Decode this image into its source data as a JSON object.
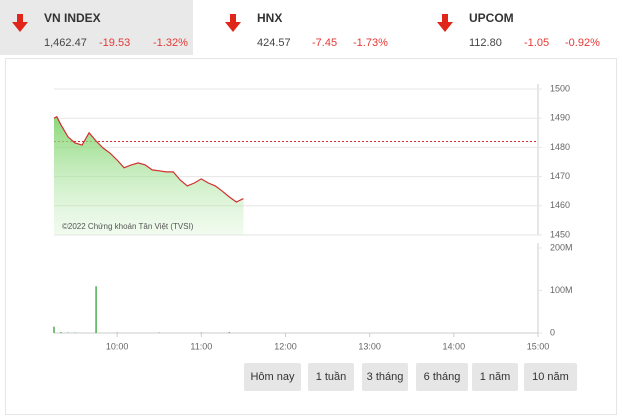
{
  "indices": [
    {
      "name": "VN INDEX",
      "value": "1,462.47",
      "change": "-19.53",
      "percent": "-1.32%"
    },
    {
      "name": "HNX",
      "value": "424.57",
      "change": "-7.45",
      "percent": "-1.73%"
    },
    {
      "name": "UPCOM",
      "value": "112.80",
      "change": "-1.05",
      "percent": "-0.92%"
    }
  ],
  "buttons": [
    "Hôm nay",
    "1 tuần",
    "3 tháng",
    "6 tháng",
    "1 năm",
    "10 năm"
  ],
  "chart_data": [
    {
      "type": "line",
      "annotation": "©2022 Chứng khoán Tân Việt (TVSI)",
      "x": [
        "09:15",
        "09:17",
        "09:20",
        "09:25",
        "09:30",
        "09:35",
        "09:40",
        "09:45",
        "09:50",
        "09:55",
        "10:00",
        "10:05",
        "10:10",
        "10:15",
        "10:20",
        "10:25",
        "10:30",
        "10:35",
        "10:40",
        "10:45",
        "10:50",
        "10:55",
        "11:00",
        "11:05",
        "11:10",
        "11:15",
        "11:20",
        "11:25",
        "11:30"
      ],
      "series": [
        {
          "color": "#d32f2f",
          "values": [
            1490,
            1490.5,
            1487.7,
            1483.6,
            1481.5,
            1480.8,
            1485,
            1482.2,
            1479.8,
            1478,
            1475.7,
            1473,
            1474,
            1474.7,
            1474,
            1472.3,
            1472,
            1471.6,
            1471.6,
            1468.8,
            1466.8,
            1467.8,
            1469.2,
            1467.8,
            1466.8,
            1465,
            1463,
            1461.3,
            1462.47
          ]
        }
      ],
      "reference_line": 1482,
      "xlim": [
        "09:15",
        "15:00"
      ],
      "ylim": [
        1450,
        1500
      ],
      "yticks": [
        1450,
        1460,
        1470,
        1480,
        1490,
        1500
      ],
      "grid": true
    },
    {
      "type": "bar",
      "x": [
        "09:15",
        "09:20",
        "09:25",
        "09:30",
        "09:45",
        "10:00",
        "10:30",
        "11:00",
        "11:20"
      ],
      "values": [
        15,
        2,
        1,
        1,
        110,
        1,
        1,
        1,
        2
      ],
      "color": "#4caf50",
      "xlim": [
        "09:15",
        "15:00"
      ],
      "xticks": [
        "10:00",
        "11:00",
        "12:00",
        "13:00",
        "14:00",
        "15:00"
      ],
      "ylim": [
        0,
        200
      ],
      "yticks": [
        0,
        {
          "value": 100,
          "label": "100M"
        },
        {
          "value": 200,
          "label": "200M"
        }
      ]
    }
  ]
}
